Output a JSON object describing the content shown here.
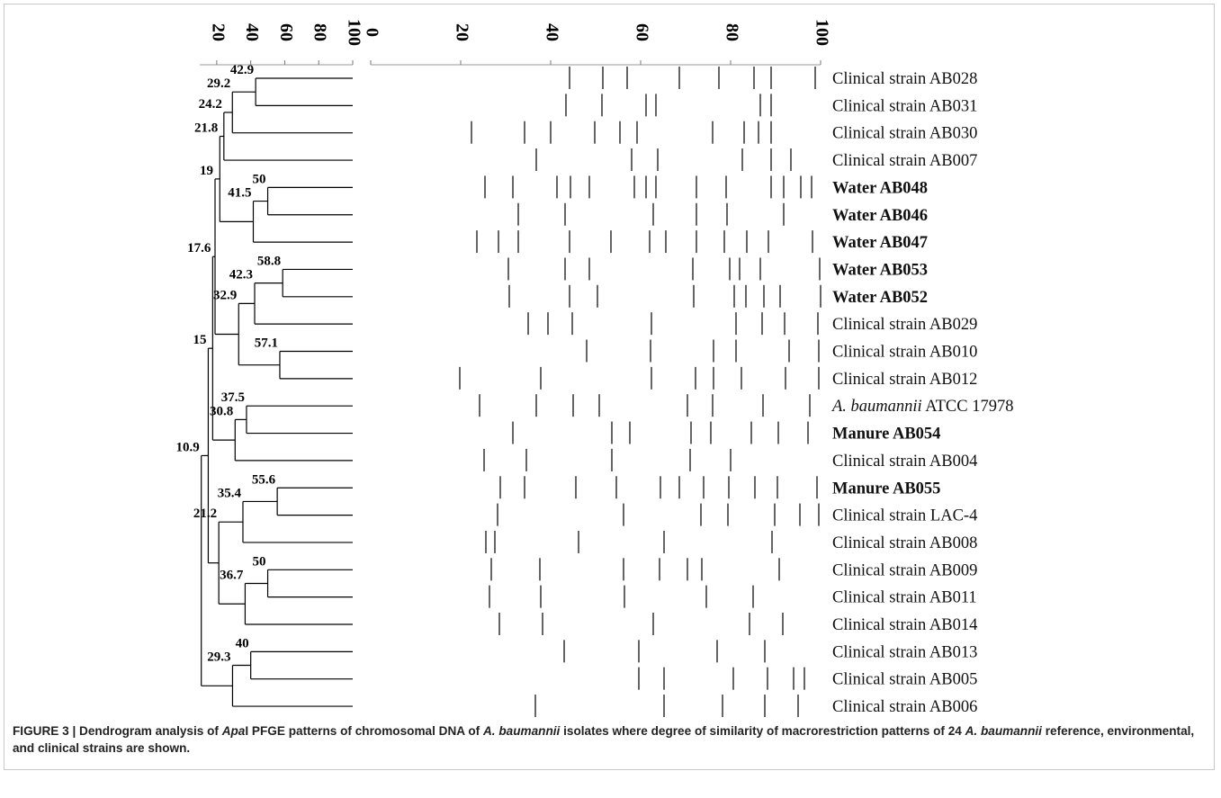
{
  "chart_data": {
    "type": "dendrogram",
    "tree_xlim": [
      10,
      100
    ],
    "tree_xticks": [
      20,
      40,
      60,
      80,
      100
    ],
    "band_xlim": [
      0,
      100
    ],
    "band_xticks": [
      0,
      20,
      40,
      60,
      80,
      100
    ],
    "line_color": "#000000",
    "leaves": [
      {
        "parts": [
          {
            "text": "Clinical strain AB028",
            "italic": false
          }
        ],
        "bold": false,
        "bands": [
          44.2,
          51.6,
          57,
          68.6,
          77.4,
          85.2,
          89,
          98.8
        ]
      },
      {
        "parts": [
          {
            "text": "Clinical strain AB031",
            "italic": false
          }
        ],
        "bold": false,
        "bands": [
          43.4,
          51.4,
          61.2,
          63.4,
          86.6,
          89
        ]
      },
      {
        "parts": [
          {
            "text": "Clinical strain AB030",
            "italic": false
          }
        ],
        "bold": false,
        "bands": [
          22.4,
          34.2,
          40,
          49.8,
          55.4,
          59.2,
          76,
          83,
          86.2,
          89
        ]
      },
      {
        "parts": [
          {
            "text": "Clinical strain AB007",
            "italic": false
          }
        ],
        "bold": false,
        "bands": [
          36.8,
          58,
          63.8,
          82.6,
          89,
          93.4
        ]
      },
      {
        "parts": [
          {
            "text": "Water AB048",
            "italic": false
          }
        ],
        "bold": true,
        "bands": [
          25.4,
          31.6,
          41.4,
          44.4,
          48.6,
          58.6,
          61.2,
          63.4,
          72.4,
          79,
          89,
          91.8,
          95.6,
          98
        ]
      },
      {
        "parts": [
          {
            "text": "Water AB046",
            "italic": false
          }
        ],
        "bold": true,
        "bands": [
          32.8,
          43.2,
          62.8,
          72.4,
          79.2,
          91.8
        ]
      },
      {
        "parts": [
          {
            "text": "Water AB047",
            "italic": false
          }
        ],
        "bold": true,
        "bands": [
          23.6,
          28.4,
          32.8,
          44.2,
          53.4,
          62,
          65.6,
          72.4,
          78.6,
          83.6,
          88.4,
          98.2
        ]
      },
      {
        "parts": [
          {
            "text": "Water AB053",
            "italic": false
          }
        ],
        "bold": true,
        "bands": [
          30.6,
          43.2,
          48.6,
          71.6,
          79.8,
          82,
          86.6,
          99.8
        ]
      },
      {
        "parts": [
          {
            "text": "Water AB052",
            "italic": false
          }
        ],
        "bold": true,
        "bands": [
          30.8,
          44.2,
          50.4,
          71.8,
          80.8,
          83.4,
          87.4,
          91,
          100
        ]
      },
      {
        "parts": [
          {
            "text": "Clinical strain AB029",
            "italic": false
          }
        ],
        "bold": false,
        "bands": [
          35,
          39.4,
          44.8,
          62.4,
          81.2,
          87,
          92,
          99.4
        ]
      },
      {
        "parts": [
          {
            "text": "Clinical strain AB010",
            "italic": false
          }
        ],
        "bold": false,
        "bands": [
          48,
          62.2,
          76.2,
          81.2,
          93,
          99.6
        ]
      },
      {
        "parts": [
          {
            "text": "Clinical strain AB012",
            "italic": false
          }
        ],
        "bold": false,
        "bands": [
          19.8,
          37.8,
          62.4,
          72.2,
          76.2,
          82.4,
          92.2,
          99.6
        ]
      },
      {
        "parts": [
          {
            "text": "A. baumannii",
            "italic": true
          },
          {
            "text": " ATCC 17978",
            "italic": false
          }
        ],
        "bold": false,
        "bands": [
          24.2,
          36.8,
          45,
          50.8,
          70.4,
          76,
          87.2,
          97.6
        ]
      },
      {
        "parts": [
          {
            "text": "Manure AB054",
            "italic": false
          }
        ],
        "bold": true,
        "bands": [
          31.6,
          53.6,
          57.6,
          71.2,
          75.6,
          84.6,
          90.6,
          97.2
        ]
      },
      {
        "parts": [
          {
            "text": "Clinical strain AB004",
            "italic": false
          }
        ],
        "bold": false,
        "bands": [
          25.2,
          34.6,
          53.6,
          71,
          80
        ]
      },
      {
        "parts": [
          {
            "text": "Manure AB055",
            "italic": false
          }
        ],
        "bold": true,
        "bands": [
          28.8,
          34.2,
          45.6,
          54.6,
          64.4,
          68.6,
          74,
          79.6,
          85.4,
          90.4,
          99.2
        ]
      },
      {
        "parts": [
          {
            "text": "Clinical strain LAC-4",
            "italic": false
          }
        ],
        "bold": false,
        "bands": [
          28.2,
          56.2,
          73.4,
          79.4,
          89.8,
          95.4,
          99.6
        ]
      },
      {
        "parts": [
          {
            "text": "Clinical strain AB008",
            "italic": false
          }
        ],
        "bold": false,
        "bands": [
          25.6,
          27.6,
          46.2,
          65.2,
          89.2
        ]
      },
      {
        "parts": [
          {
            "text": "Clinical strain AB009",
            "italic": false
          }
        ],
        "bold": false,
        "bands": [
          26.8,
          37.6,
          56.2,
          64.2,
          70.4,
          73.6,
          90.8
        ]
      },
      {
        "parts": [
          {
            "text": "Clinical strain AB011",
            "italic": false
          }
        ],
        "bold": false,
        "bands": [
          26.4,
          37.8,
          56.4,
          74.6,
          85
        ]
      },
      {
        "parts": [
          {
            "text": "Clinical strain AB014",
            "italic": false
          }
        ],
        "bold": false,
        "bands": [
          28.6,
          38.2,
          62.8,
          84.2,
          91.6
        ]
      },
      {
        "parts": [
          {
            "text": "Clinical strain AB013",
            "italic": false
          }
        ],
        "bold": false,
        "bands": [
          43,
          59.6,
          77,
          87.6
        ]
      },
      {
        "parts": [
          {
            "text": "Clinical strain AB005",
            "italic": false
          }
        ],
        "bold": false,
        "bands": [
          59.6,
          65.2,
          80.6,
          88.2,
          94,
          96.4
        ]
      },
      {
        "parts": [
          {
            "text": "Clinical strain AB006",
            "italic": false
          }
        ],
        "bold": false,
        "bands": [
          36.6,
          65.2,
          78.2,
          87.6,
          95
        ]
      }
    ],
    "nodes": [
      {
        "value": 42.9,
        "children": [
          {
            "leaf": 0
          },
          {
            "leaf": 1
          }
        ]
      },
      {
        "value": 29.2,
        "children": [
          {
            "node": 0
          },
          {
            "leaf": 2
          }
        ]
      },
      {
        "value": 24.2,
        "children": [
          {
            "node": 1
          },
          {
            "leaf": 3
          }
        ]
      },
      {
        "value": 50,
        "children": [
          {
            "leaf": 4
          },
          {
            "leaf": 5
          }
        ]
      },
      {
        "value": 41.5,
        "children": [
          {
            "node": 3
          },
          {
            "leaf": 6
          }
        ]
      },
      {
        "value": 21.8,
        "children": [
          {
            "node": 2
          },
          {
            "node": 4
          }
        ]
      },
      {
        "value": 58.8,
        "children": [
          {
            "leaf": 7
          },
          {
            "leaf": 8
          }
        ]
      },
      {
        "value": 42.3,
        "children": [
          {
            "node": 6
          },
          {
            "leaf": 9
          }
        ]
      },
      {
        "value": 57.1,
        "children": [
          {
            "leaf": 10
          },
          {
            "leaf": 11
          }
        ]
      },
      {
        "value": 32.9,
        "children": [
          {
            "node": 7
          },
          {
            "node": 8
          }
        ]
      },
      {
        "value": 19,
        "children": [
          {
            "node": 5
          },
          {
            "node": 9
          }
        ]
      },
      {
        "value": 37.5,
        "children": [
          {
            "leaf": 12
          },
          {
            "leaf": 13
          }
        ]
      },
      {
        "value": 30.8,
        "children": [
          {
            "node": 11
          },
          {
            "leaf": 14
          }
        ]
      },
      {
        "value": 17.6,
        "children": [
          {
            "node": 10
          },
          {
            "node": 12
          }
        ]
      },
      {
        "value": 55.6,
        "children": [
          {
            "leaf": 15
          },
          {
            "leaf": 16
          }
        ]
      },
      {
        "value": 35.4,
        "children": [
          {
            "node": 14
          },
          {
            "leaf": 17
          }
        ]
      },
      {
        "value": 50,
        "children": [
          {
            "leaf": 18
          },
          {
            "leaf": 19
          }
        ]
      },
      {
        "value": 36.7,
        "children": [
          {
            "node": 16
          },
          {
            "leaf": 20
          }
        ]
      },
      {
        "value": 21.2,
        "children": [
          {
            "node": 15
          },
          {
            "node": 17
          }
        ]
      },
      {
        "value": 15,
        "children": [
          {
            "node": 13
          },
          {
            "node": 18
          }
        ]
      },
      {
        "value": 40,
        "children": [
          {
            "leaf": 21
          },
          {
            "leaf": 22
          }
        ]
      },
      {
        "value": 29.3,
        "children": [
          {
            "node": 20
          },
          {
            "leaf": 23
          }
        ]
      },
      {
        "value": 10.9,
        "children": [
          {
            "node": 19
          },
          {
            "node": 21
          }
        ]
      }
    ],
    "caption": [
      {
        "text": "FIGURE 3 | Dendrogram analysis of ",
        "italic": false
      },
      {
        "text": "Apa",
        "italic": true
      },
      {
        "text": "I PFGE patterns of chromosomal DNA of ",
        "italic": false
      },
      {
        "text": "A. baumannii",
        "italic": true
      },
      {
        "text": " isolates where degree of similarity of macrorestriction patterns of 24 ",
        "italic": false
      },
      {
        "text": "A. baumannii",
        "italic": true
      },
      {
        "text": " reference, environmental, and clinical strains are shown.",
        "italic": false
      }
    ]
  }
}
